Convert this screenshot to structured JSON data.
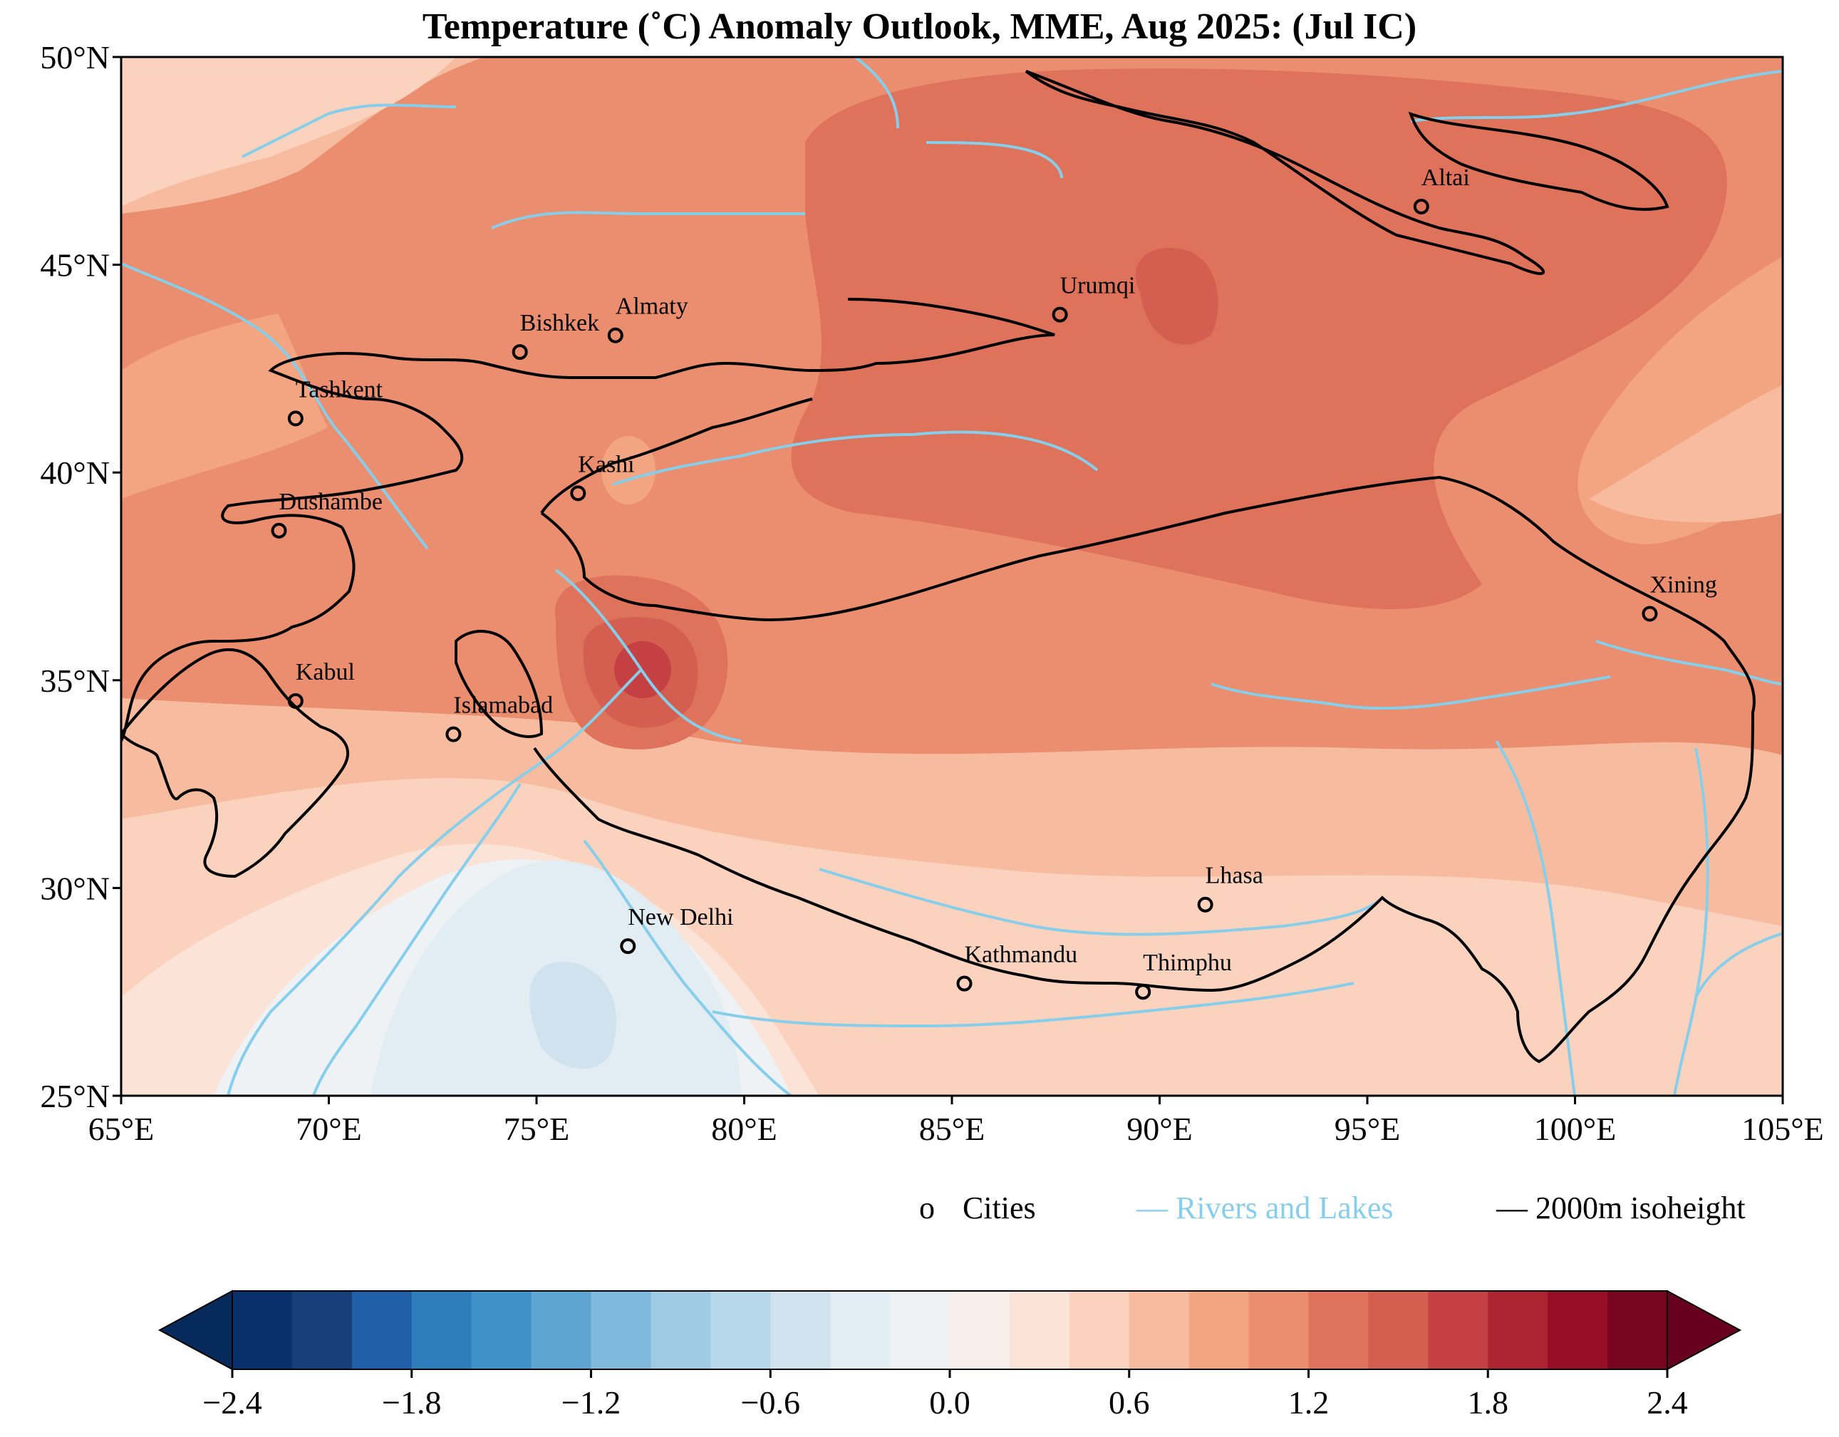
{
  "title": "Temperature (˚C) Anomaly Outlook, MME, Aug  2025:  (Jul IC)",
  "axes": {
    "lon_ticks": [
      "65°E",
      "70°E",
      "75°E",
      "80°E",
      "85°E",
      "90°E",
      "95°E",
      "100°E",
      "105°E"
    ],
    "lat_ticks": [
      "50°N",
      "45°N",
      "40°N",
      "35°N",
      "30°N",
      "25°N"
    ]
  },
  "map": {
    "lon_range": [
      65,
      105
    ],
    "lat_range": [
      25,
      50
    ],
    "cities": [
      {
        "name": "Altai",
        "lon": 96.3,
        "lat": 46.4
      },
      {
        "name": "Urumqi",
        "lon": 87.6,
        "lat": 43.8
      },
      {
        "name": "Almaty",
        "lon": 76.9,
        "lat": 43.3
      },
      {
        "name": "Bishkek",
        "lon": 74.6,
        "lat": 42.9
      },
      {
        "name": "Tashkent",
        "lon": 69.2,
        "lat": 41.3
      },
      {
        "name": "Kashi",
        "lon": 76.0,
        "lat": 39.5
      },
      {
        "name": "Dushambe",
        "lon": 68.8,
        "lat": 38.6
      },
      {
        "name": "Xining",
        "lon": 101.8,
        "lat": 36.6
      },
      {
        "name": "Kabul",
        "lon": 69.2,
        "lat": 34.5
      },
      {
        "name": "Islamabad",
        "lon": 73.0,
        "lat": 33.7
      },
      {
        "name": "Lhasa",
        "lon": 91.1,
        "lat": 29.6
      },
      {
        "name": "New Delhi",
        "lon": 77.2,
        "lat": 28.6
      },
      {
        "name": "Kathmandu",
        "lon": 85.3,
        "lat": 27.7
      },
      {
        "name": "Thimphu",
        "lon": 89.6,
        "lat": 27.5
      }
    ]
  },
  "legend": {
    "cities_marker": "o",
    "cities_label": "Cities",
    "rivers_label": "Rivers and Lakes",
    "isoheight_label": "2000m isoheight",
    "rivers_color": "#87ceeb",
    "isoheight_color": "#000000"
  },
  "colorbar": {
    "ticks": [
      "−2.4",
      "−1.8",
      "−1.2",
      "−0.6",
      "0.0",
      "0.6",
      "1.2",
      "1.8",
      "2.4"
    ],
    "range": [
      -2.4,
      2.4
    ],
    "colors": [
      "#08306b",
      "#163f7a",
      "#1f5fa8",
      "#2e7ebb",
      "#3f92c7",
      "#5ea5d2",
      "#7fb9dc",
      "#9ecbe3",
      "#b7d8ea",
      "#cfe2ee",
      "#e2ecf3",
      "#eef2f5",
      "#f8efeb",
      "#fbe3d8",
      "#fbd2bd",
      "#f7bc9f",
      "#f3a481",
      "#ea8e6f",
      "#de725b",
      "#d45e4f",
      "#c54043",
      "#ad2530",
      "#960f27",
      "#780520"
    ],
    "under_color": "#062a5c",
    "over_color": "#67001f"
  },
  "chart_data": {
    "type": "heatmap",
    "title": "Temperature (˚C) Anomaly Outlook, MME, Aug  2025:  (Jul IC)",
    "variable": "Temperature anomaly",
    "unit": "˚C",
    "x_range": [
      65,
      105
    ],
    "y_range": [
      25,
      50
    ],
    "color_range": [
      -2.4,
      2.4
    ],
    "colorbar_ticks": [
      -2.4,
      -1.8,
      -1.2,
      -0.6,
      0.0,
      0.6,
      1.2,
      1.8,
      2.4
    ]
  }
}
